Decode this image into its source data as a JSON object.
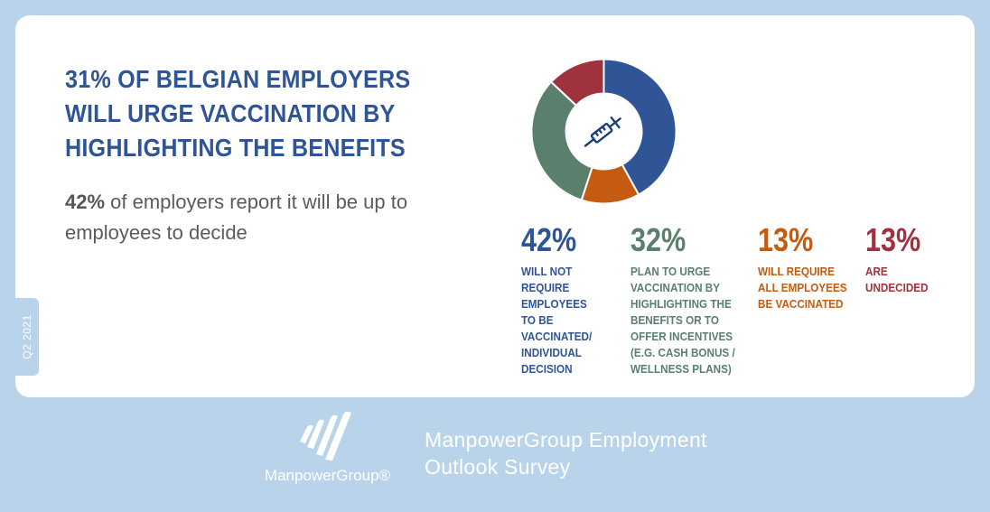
{
  "headline": "31% of Belgian employers will urge vaccination by highlighting the benefits",
  "subtext": {
    "strong": "42%",
    "rest": " of employers report it will be up to employees to decide"
  },
  "quarter_tag": "Q2 2021",
  "chart_data": {
    "type": "pie",
    "donut": true,
    "center_icon": "syringe-icon",
    "categories": [
      "Will not require employees to be vaccinated/ individual decision",
      "Will require all employees be vaccinated",
      "Plan to urge vaccination by highlighting the benefits or to offer incentives (e.g. cash bonus / wellness plans)",
      "Are undecided"
    ],
    "values": [
      42,
      13,
      32,
      13
    ],
    "colors": [
      "#2f5597",
      "#c55a11",
      "#5a7f6c",
      "#a0323e"
    ]
  },
  "stats": [
    {
      "pct": "42%",
      "desc": "Will not\nrequire\nemployees\nto be\nvaccinated/\nindividual\ndecision",
      "color": "#2f5597"
    },
    {
      "pct": "32%",
      "desc": "Plan to urge\nvaccination by\nhighlighting the\nbenefits or to\noffer incentives\n(e.g. cash bonus /\nwellness plans)",
      "color": "#5a7f6c"
    },
    {
      "pct": "13%",
      "desc": "Will require\nall employees\nbe vaccinated",
      "color": "#c55a11"
    },
    {
      "pct": "13%",
      "desc": "Are\nundecided",
      "color": "#a0323e"
    }
  ],
  "footer": {
    "logo_text": "ManpowerGroup®",
    "survey_title": "ManpowerGroup Employment Outlook Survey"
  }
}
